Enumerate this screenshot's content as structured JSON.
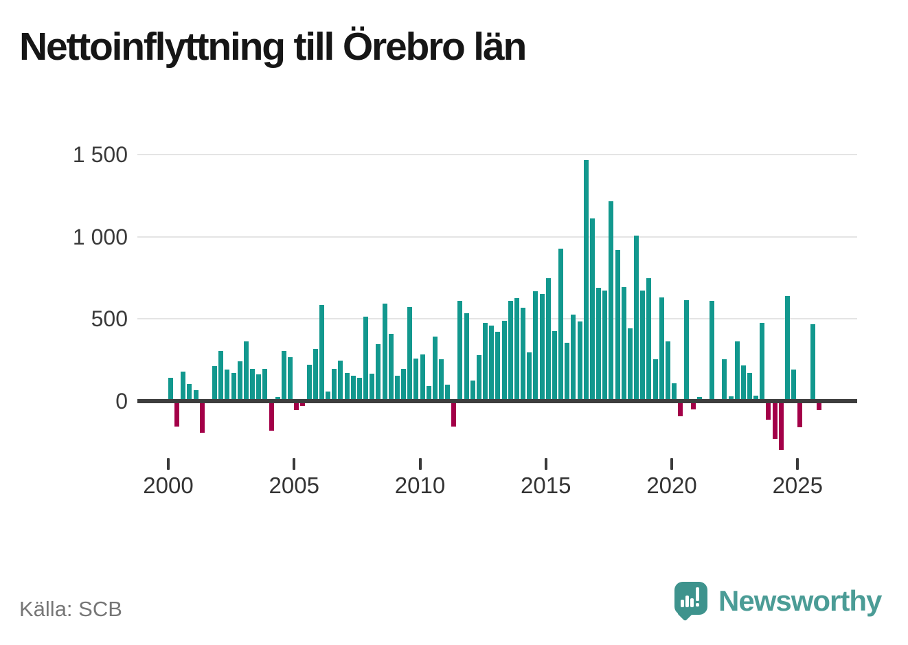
{
  "title": "Nettoinflyttning till Örebro län",
  "source": "Källa: SCB",
  "branding": {
    "name": "Newsworthy",
    "logo_icon": "speech-bubble-with-bar-chart-and-exclamation"
  },
  "colors": {
    "positive": "#12988e",
    "negative": "#a30048",
    "grid": "#e4e4e4",
    "axis": "#3d3d3d",
    "axis_text": "#3a3a3a",
    "brand": "#4b9c96",
    "source_text": "#767676"
  },
  "chart_data": {
    "type": "bar",
    "title": "Nettoinflyttning till Örebro län",
    "xlabel": "",
    "ylabel": "",
    "frequency": "quarterly",
    "start_period": "2000-Q1",
    "end_period": "2025-Q4",
    "x_tick_years": [
      2000,
      2005,
      2010,
      2015,
      2020,
      2025
    ],
    "x_tick_labels": [
      "2000",
      "2005",
      "2010",
      "2015",
      "2020",
      "2025"
    ],
    "y_gridline_values": [
      0,
      500,
      1000,
      1500
    ],
    "y_tick_labels": [
      "0",
      "500",
      "1 000",
      "1 500"
    ],
    "ylim": [
      -320,
      1560
    ],
    "grid": true,
    "legend": false,
    "values": [
      135,
      -145,
      170,
      95,
      60,
      -185,
      0,
      205,
      295,
      185,
      165,
      235,
      355,
      190,
      155,
      190,
      -170,
      15,
      295,
      260,
      -45,
      -20,
      215,
      310,
      575,
      50,
      190,
      240,
      165,
      145,
      135,
      505,
      160,
      340,
      585,
      400,
      145,
      190,
      565,
      250,
      275,
      85,
      385,
      245,
      90,
      -145,
      600,
      525,
      115,
      270,
      470,
      450,
      415,
      480,
      600,
      620,
      560,
      290,
      660,
      645,
      740,
      420,
      920,
      345,
      520,
      475,
      1460,
      1105,
      680,
      665,
      1210,
      910,
      685,
      435,
      1000,
      665,
      740,
      245,
      625,
      355,
      100,
      -85,
      605,
      -40,
      15,
      0,
      600,
      0,
      245,
      20,
      355,
      210,
      165,
      25,
      470,
      -105,
      -220,
      -290,
      630,
      185,
      -150,
      0,
      460,
      -45
    ]
  }
}
